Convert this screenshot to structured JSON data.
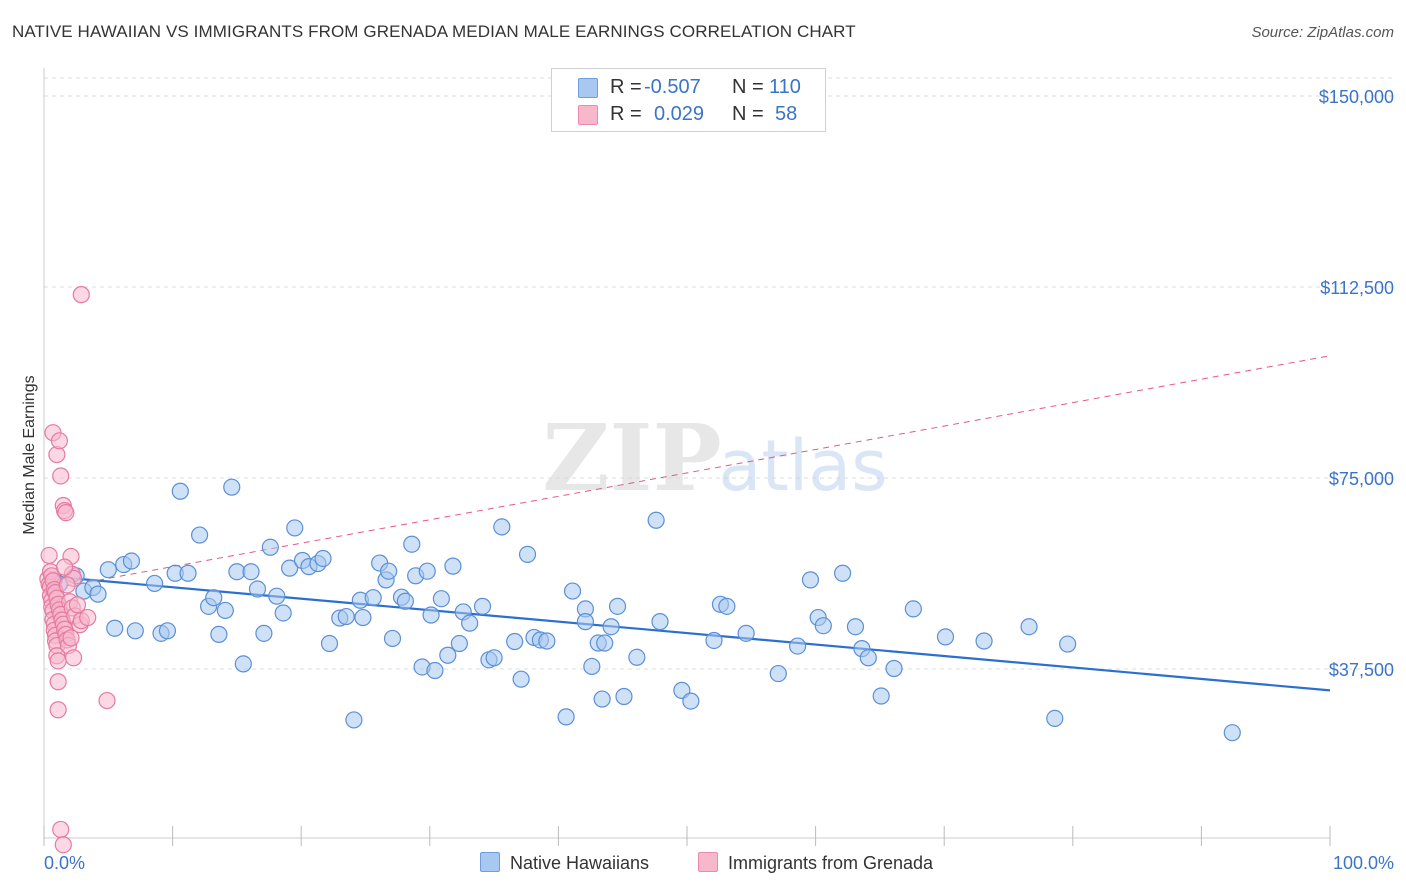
{
  "title": "NATIVE HAWAIIAN VS IMMIGRANTS FROM GRENADA MEDIAN MALE EARNINGS CORRELATION CHART",
  "source": "Source: ZipAtlas.com",
  "watermark": {
    "zip": "ZIP",
    "atlas": "atlas"
  },
  "legend": {
    "rows": [
      {
        "r_label": "R =",
        "r_value": "-0.507",
        "n_label": "N =",
        "n_value": "110",
        "color": "#a8c8f0"
      },
      {
        "r_label": "R =",
        "r_value": "0.029",
        "n_label": "N =",
        "n_value": "58",
        "color": "#f8b8cc"
      }
    ]
  },
  "bottom_legend": [
    {
      "label": "Native Hawaiians",
      "color": "#a8c8f0"
    },
    {
      "label": "Immigrants from Grenada",
      "color": "#f8b8cc"
    }
  ],
  "chart_data": {
    "type": "scatter",
    "title": "NATIVE HAWAIIAN VS IMMIGRANTS FROM GRENADA MEDIAN MALE EARNINGS CORRELATION CHART",
    "xlabel": "",
    "ylabel": "Median Male Earnings",
    "xlim": [
      0,
      100
    ],
    "ylim": [
      0,
      155000
    ],
    "x_tick_labels": [
      "0.0%",
      "100.0%"
    ],
    "y_ticks": [
      37500,
      75000,
      112500,
      150000
    ],
    "y_tick_labels": [
      "$37,500",
      "$75,000",
      "$112,500",
      "$150,000"
    ],
    "grid": true,
    "legend_position": "top-center",
    "series": [
      {
        "name": "Native Hawaiians",
        "color": "#a8c8f0",
        "stroke": "#5b8fd6",
        "trend": {
          "x": [
            0,
            100
          ],
          "y": [
            55800,
            33300
          ],
          "color": "#2b6fd0",
          "style": "solid"
        },
        "points": [
          [
            0.8,
            55000
          ],
          [
            1.2,
            54200
          ],
          [
            2.5,
            55800
          ],
          [
            3.1,
            52800
          ],
          [
            3.8,
            53500
          ],
          [
            4.2,
            52200
          ],
          [
            5.0,
            57000
          ],
          [
            5.5,
            45500
          ],
          [
            6.2,
            58000
          ],
          [
            6.8,
            58700
          ],
          [
            7.1,
            45000
          ],
          [
            8.6,
            54300
          ],
          [
            9.1,
            44500
          ],
          [
            9.6,
            45000
          ],
          [
            10.2,
            56300
          ],
          [
            10.6,
            72400
          ],
          [
            11.2,
            56300
          ],
          [
            12.1,
            63800
          ],
          [
            12.8,
            49800
          ],
          [
            13.2,
            51500
          ],
          [
            13.6,
            44300
          ],
          [
            14.1,
            49000
          ],
          [
            14.6,
            73200
          ],
          [
            15.0,
            56600
          ],
          [
            15.5,
            38500
          ],
          [
            16.1,
            56600
          ],
          [
            16.6,
            53200
          ],
          [
            17.1,
            44500
          ],
          [
            17.6,
            61400
          ],
          [
            18.1,
            51800
          ],
          [
            18.6,
            48500
          ],
          [
            19.1,
            57300
          ],
          [
            19.5,
            65200
          ],
          [
            20.1,
            58800
          ],
          [
            20.6,
            57600
          ],
          [
            21.3,
            58200
          ],
          [
            21.7,
            59200
          ],
          [
            22.2,
            42500
          ],
          [
            23.0,
            47500
          ],
          [
            23.5,
            47800
          ],
          [
            24.1,
            27500
          ],
          [
            24.6,
            51000
          ],
          [
            24.8,
            47600
          ],
          [
            25.6,
            51500
          ],
          [
            26.1,
            58300
          ],
          [
            26.6,
            55000
          ],
          [
            26.8,
            56700
          ],
          [
            27.1,
            43500
          ],
          [
            27.8,
            51600
          ],
          [
            28.1,
            50800
          ],
          [
            28.6,
            62000
          ],
          [
            28.9,
            55800
          ],
          [
            29.4,
            37900
          ],
          [
            29.8,
            56700
          ],
          [
            30.1,
            48100
          ],
          [
            30.4,
            37200
          ],
          [
            30.9,
            51300
          ],
          [
            31.4,
            40200
          ],
          [
            31.8,
            57700
          ],
          [
            32.3,
            42500
          ],
          [
            32.6,
            48700
          ],
          [
            33.1,
            46500
          ],
          [
            34.1,
            49800
          ],
          [
            34.6,
            39300
          ],
          [
            35.0,
            39700
          ],
          [
            35.6,
            65400
          ],
          [
            36.6,
            42900
          ],
          [
            37.1,
            35500
          ],
          [
            37.6,
            60000
          ],
          [
            38.1,
            43700
          ],
          [
            38.6,
            43200
          ],
          [
            39.1,
            43000
          ],
          [
            40.6,
            28100
          ],
          [
            41.1,
            52800
          ],
          [
            42.1,
            49300
          ],
          [
            42.1,
            46800
          ],
          [
            42.6,
            38000
          ],
          [
            43.1,
            42600
          ],
          [
            43.4,
            31600
          ],
          [
            43.6,
            42600
          ],
          [
            44.1,
            45800
          ],
          [
            44.6,
            49800
          ],
          [
            45.1,
            32100
          ],
          [
            46.1,
            39800
          ],
          [
            47.6,
            66700
          ],
          [
            49.6,
            33300
          ],
          [
            50.3,
            31200
          ],
          [
            52.6,
            50200
          ],
          [
            53.1,
            49800
          ],
          [
            54.6,
            44500
          ],
          [
            57.1,
            36600
          ],
          [
            59.6,
            55000
          ],
          [
            60.2,
            47600
          ],
          [
            60.6,
            46000
          ],
          [
            62.1,
            56300
          ],
          [
            63.1,
            45800
          ],
          [
            63.6,
            41500
          ],
          [
            64.1,
            39700
          ],
          [
            65.1,
            32200
          ],
          [
            66.1,
            37600
          ],
          [
            67.6,
            49300
          ],
          [
            70.1,
            43800
          ],
          [
            73.1,
            43000
          ],
          [
            76.6,
            45800
          ],
          [
            78.6,
            27800
          ],
          [
            79.6,
            42400
          ],
          [
            92.4,
            25000
          ],
          [
            47.9,
            46800
          ],
          [
            52.1,
            43100
          ],
          [
            58.6,
            42000
          ]
        ]
      },
      {
        "name": "Immigrants from Grenada",
        "color": "#f8b8cc",
        "stroke": "#e57ba0",
        "trend": {
          "x": [
            0,
            100
          ],
          "y": [
            53000,
            99000
          ],
          "color": "#e05a8a",
          "style": "dashed"
        },
        "points": [
          [
            0.3,
            55200
          ],
          [
            0.4,
            54100
          ],
          [
            0.5,
            53600
          ],
          [
            0.5,
            51900
          ],
          [
            0.6,
            50900
          ],
          [
            0.6,
            49700
          ],
          [
            0.7,
            48900
          ],
          [
            0.7,
            47200
          ],
          [
            0.8,
            46300
          ],
          [
            0.8,
            45100
          ],
          [
            0.9,
            44100
          ],
          [
            0.9,
            43000
          ],
          [
            1.0,
            42100
          ],
          [
            1.0,
            40100
          ],
          [
            1.1,
            39100
          ],
          [
            1.1,
            35000
          ],
          [
            0.4,
            59800
          ],
          [
            0.5,
            56600
          ],
          [
            0.6,
            55800
          ],
          [
            0.7,
            54800
          ],
          [
            0.8,
            53100
          ],
          [
            0.9,
            52500
          ],
          [
            1.0,
            51400
          ],
          [
            1.1,
            50200
          ],
          [
            1.2,
            49100
          ],
          [
            1.3,
            48200
          ],
          [
            1.4,
            47100
          ],
          [
            1.5,
            46300
          ],
          [
            1.6,
            45300
          ],
          [
            1.7,
            44300
          ],
          [
            1.8,
            43200
          ],
          [
            1.9,
            42100
          ],
          [
            0.7,
            83900
          ],
          [
            1.0,
            79600
          ],
          [
            1.2,
            82300
          ],
          [
            1.3,
            75400
          ],
          [
            1.5,
            69600
          ],
          [
            1.6,
            68600
          ],
          [
            1.7,
            68200
          ],
          [
            1.1,
            29500
          ],
          [
            2.1,
            59600
          ],
          [
            2.2,
            56100
          ],
          [
            2.3,
            55300
          ],
          [
            2.0,
            50700
          ],
          [
            2.2,
            49500
          ],
          [
            2.4,
            47900
          ],
          [
            2.6,
            50100
          ],
          [
            2.8,
            46200
          ],
          [
            2.1,
            43600
          ],
          [
            2.3,
            39700
          ],
          [
            2.9,
            47000
          ],
          [
            3.4,
            47600
          ],
          [
            4.9,
            31300
          ],
          [
            2.9,
            111000
          ],
          [
            1.3,
            6000
          ],
          [
            1.5,
            3000
          ],
          [
            1.6,
            57500
          ],
          [
            1.8,
            54000
          ]
        ]
      }
    ]
  }
}
